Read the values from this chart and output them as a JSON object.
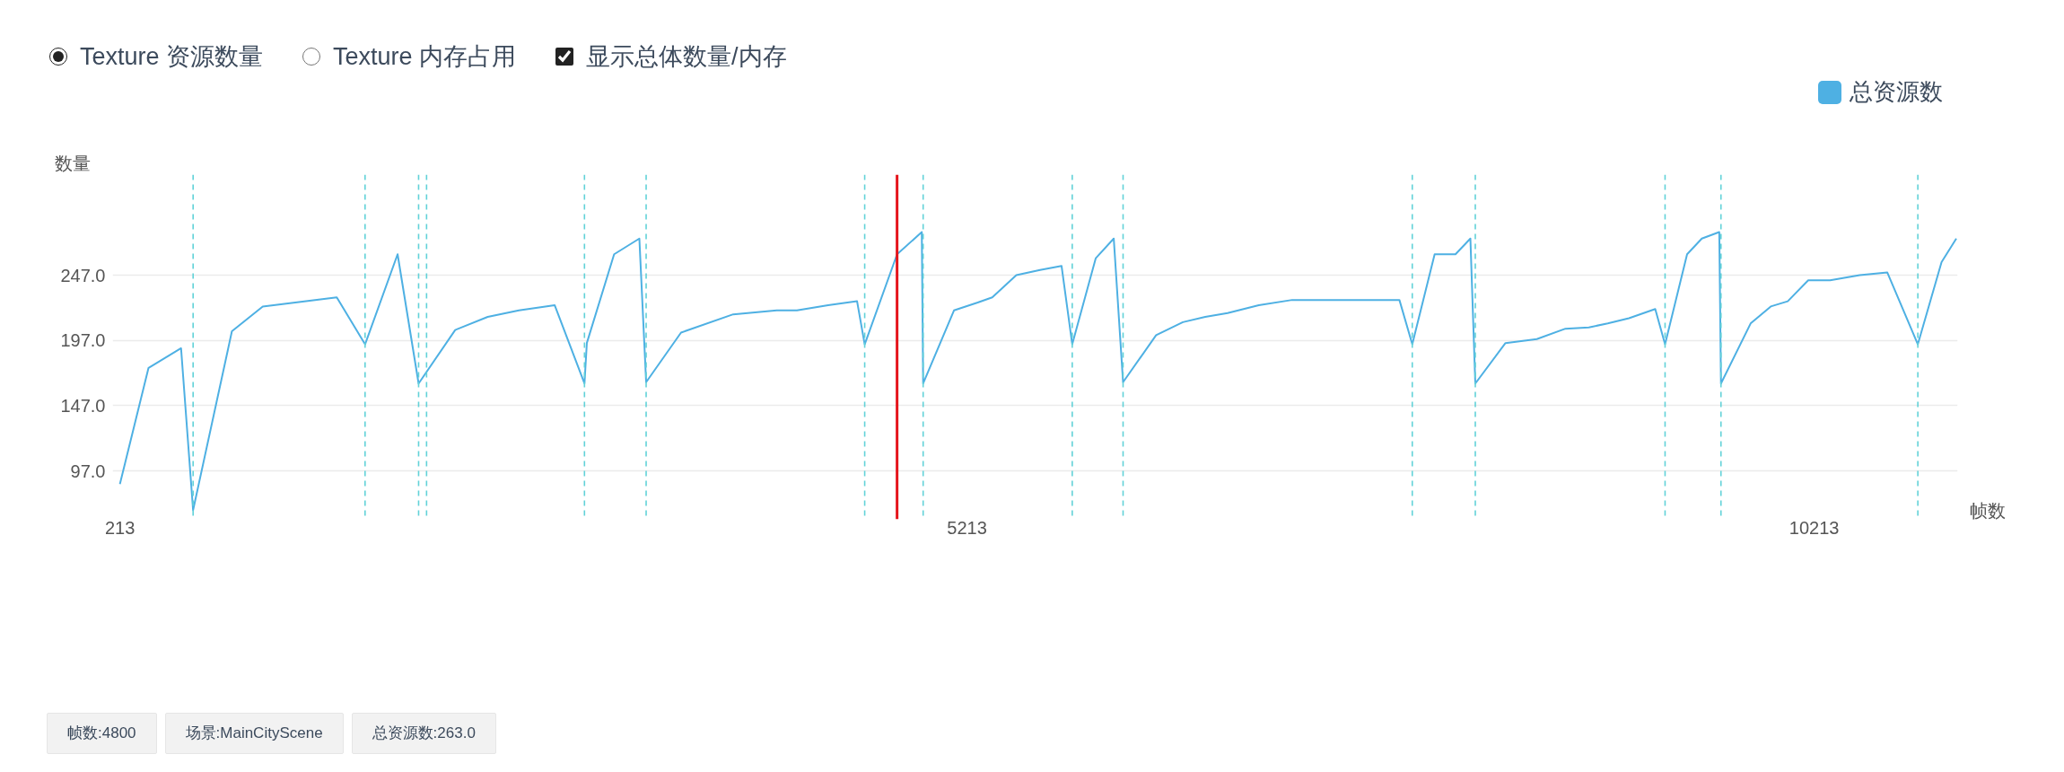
{
  "chart_data": {
    "type": "line",
    "annotations": [
      "Texture 资源数量",
      "Texture 内存占用",
      "显示总体数量/内存",
      "帧数:4800",
      "场景:MainCityScene",
      "总资源数:263.0"
    ],
    "xlabel": "帧数",
    "ylabel": "数量",
    "x": [
      213,
      382,
      574,
      645,
      874,
      1056,
      1493,
      1660,
      1852,
      1976,
      2192,
      2384,
      2568,
      2779,
      2955,
      2969,
      3130,
      3279,
      3319,
      3525,
      3833,
      4090,
      4209,
      4393,
      4564,
      4609,
      4800,
      4946,
      4954,
      5136,
      5276,
      5362,
      5504,
      5644,
      5771,
      5834,
      5973,
      6079,
      6134,
      6329,
      6487,
      6619,
      6751,
      6935,
      7132,
      7765,
      7841,
      7973,
      8096,
      8184,
      8213,
      8391,
      8576,
      8745,
      8883,
      8995,
      9120,
      9275,
      9333,
      9463,
      9550,
      9653,
      9663,
      9838,
      9957,
      10057,
      10178,
      10307,
      10482,
      10645,
      10825,
      10965,
      11052
    ],
    "series": [
      {
        "name": "总资源数",
        "color": "#4eb0e3",
        "values": [
          87,
          176,
          191,
          67,
          204,
          223,
          230,
          194,
          263,
          164,
          205,
          215,
          220,
          224,
          164,
          195,
          263,
          275,
          165,
          203,
          217,
          220,
          220,
          224,
          227,
          194,
          263,
          280,
          164,
          220,
          226,
          230,
          247,
          251,
          254,
          194,
          260,
          275,
          165,
          201,
          211,
          215,
          218,
          224,
          228,
          228,
          194,
          263,
          263,
          275,
          164,
          195,
          198,
          206,
          207,
          210,
          214,
          221,
          194,
          263,
          275,
          280,
          164,
          210,
          223,
          227,
          243,
          243,
          247,
          249,
          194,
          257,
          275
        ]
      }
    ],
    "xlim": [
      170,
      11060
    ],
    "ylim": [
      60,
      324
    ],
    "xticks": [
      213,
      5213,
      10213
    ],
    "yticks": [
      {
        "value": 97,
        "label": "97.0"
      },
      {
        "value": 147,
        "label": "147.0"
      },
      {
        "value": 197,
        "label": "197.0"
      },
      {
        "value": 247,
        "label": "247.0"
      }
    ],
    "grid": "y",
    "legend": "top right",
    "ref_lines": [
      {
        "axis": "x",
        "value": 645,
        "color": "#62d2d8",
        "line_style": "dashed"
      },
      {
        "axis": "x",
        "value": 1660,
        "color": "#62d2d8",
        "line_style": "dashed"
      },
      {
        "axis": "x",
        "value": 1976,
        "color": "#62d2d8",
        "line_style": "dashed"
      },
      {
        "axis": "x",
        "value": 2023,
        "color": "#62d2d8",
        "line_style": "dashed"
      },
      {
        "axis": "x",
        "value": 2955,
        "color": "#62d2d8",
        "line_style": "dashed"
      },
      {
        "axis": "x",
        "value": 3319,
        "color": "#62d2d8",
        "line_style": "dashed"
      },
      {
        "axis": "x",
        "value": 4609,
        "color": "#62d2d8",
        "line_style": "dashed"
      },
      {
        "axis": "x",
        "value": 4954,
        "color": "#62d2d8",
        "line_style": "dashed"
      },
      {
        "axis": "x",
        "value": 5834,
        "color": "#62d2d8",
        "line_style": "dashed"
      },
      {
        "axis": "x",
        "value": 6134,
        "color": "#62d2d8",
        "line_style": "dashed"
      },
      {
        "axis": "x",
        "value": 7841,
        "color": "#62d2d8",
        "line_style": "dashed"
      },
      {
        "axis": "x",
        "value": 8213,
        "color": "#62d2d8",
        "line_style": "dashed"
      },
      {
        "axis": "x",
        "value": 9333,
        "color": "#62d2d8",
        "line_style": "dashed"
      },
      {
        "axis": "x",
        "value": 9663,
        "color": "#62d2d8",
        "line_style": "dashed"
      },
      {
        "axis": "x",
        "value": 10825,
        "color": "#62d2d8",
        "line_style": "dashed"
      },
      {
        "axis": "x",
        "value": 4800,
        "color": "#e5141b",
        "line_style": "solid"
      }
    ]
  }
}
